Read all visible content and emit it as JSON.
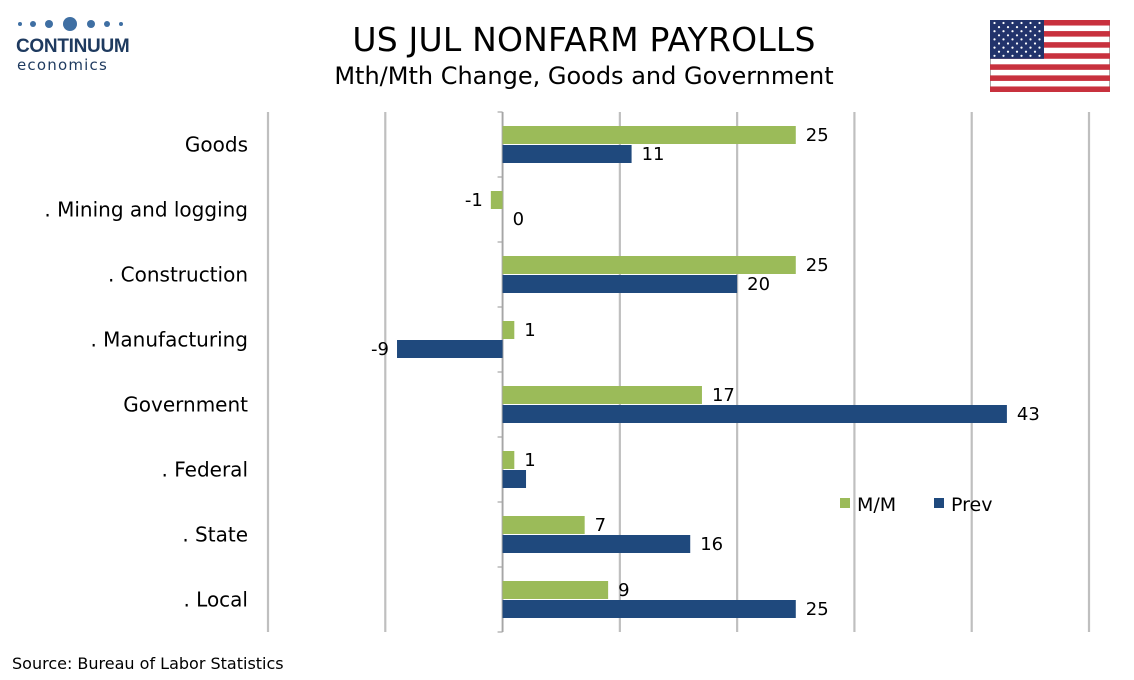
{
  "brand": {
    "name": "CONTINUUM",
    "tagline": "economics"
  },
  "header": {
    "title": "US JUL NONFARM PAYROLLS",
    "subtitle": "Mth/Mth Change, Goods and Government"
  },
  "flag_icon": "us-flag-icon",
  "source": "Source: Bureau of Labor Statistics",
  "colors": {
    "mm": "#9bbb59",
    "prev": "#1f497d",
    "grid": "#bfbfbf",
    "logo": "#3f6fa3"
  },
  "chart_data": {
    "type": "bar",
    "orientation": "horizontal",
    "categories": [
      "Goods",
      ". Mining and logging",
      ". Construction",
      ". Manufacturing",
      "Government",
      ". Federal",
      ". State",
      ". Local"
    ],
    "series": [
      {
        "name": "M/M",
        "color": "#9bbb59",
        "values": [
          25,
          -1,
          25,
          1,
          17,
          1,
          7,
          9
        ],
        "labels": [
          "25",
          "-1",
          "25",
          "1",
          "17",
          "1",
          "7",
          "9"
        ]
      },
      {
        "name": "Prev",
        "color": "#1f497d",
        "values": [
          11,
          0,
          20,
          -9,
          43,
          2,
          16,
          25
        ],
        "labels": [
          "11",
          "0",
          "20",
          "-9",
          "43",
          "",
          "16",
          "25"
        ]
      }
    ],
    "xlim": [
      -20,
      50
    ],
    "x_gridlines": [
      -20,
      -10,
      0,
      10,
      20,
      30,
      40,
      50
    ],
    "x_tick_labels_shown": false,
    "grid": true,
    "legend_position": "right-middle"
  }
}
